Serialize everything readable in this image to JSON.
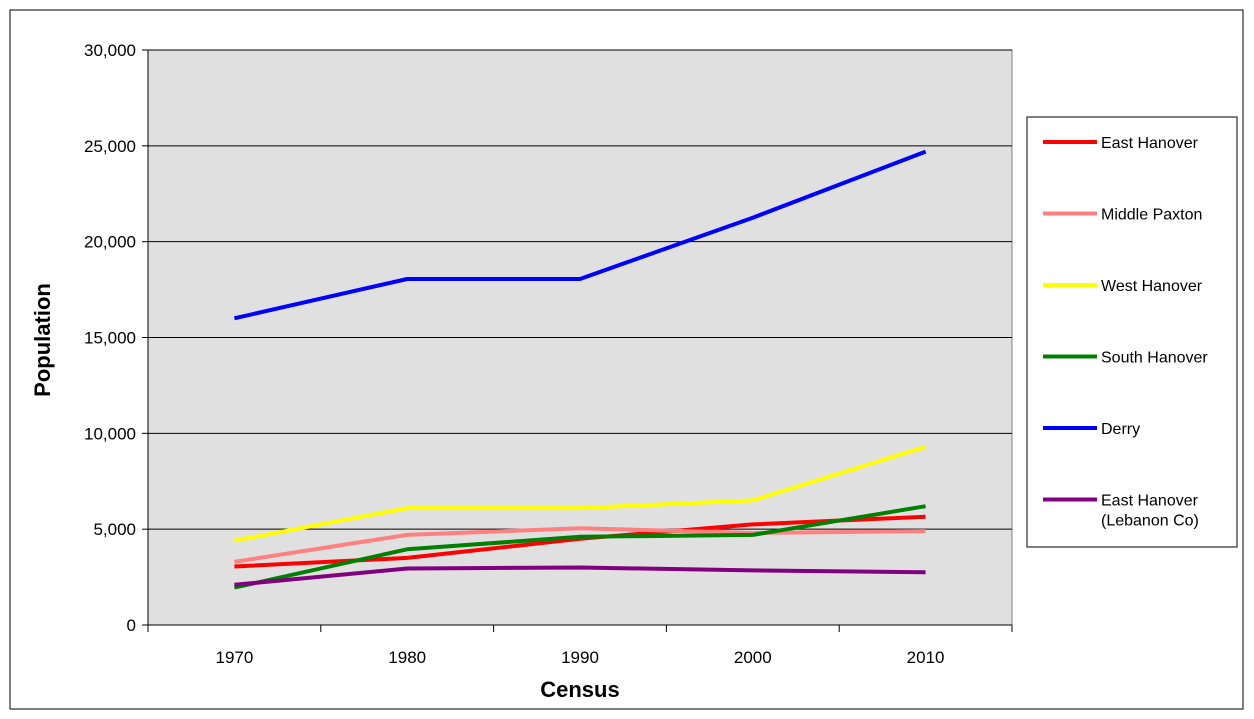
{
  "chart_data": {
    "type": "line",
    "title": "",
    "xlabel": "Census",
    "ylabel": "Population",
    "categories": [
      "1970",
      "1980",
      "1990",
      "2000",
      "2010"
    ],
    "ylim": [
      0,
      30000
    ],
    "yticks": [
      0,
      5000,
      10000,
      15000,
      20000,
      25000,
      30000
    ],
    "ytick_labels": [
      "0",
      "5,000",
      "10,000",
      "15,000",
      "20,000",
      "25,000",
      "30,000"
    ],
    "grid": true,
    "legend_position": "right",
    "plot_background": "#e0e0e0",
    "series": [
      {
        "name": "East Hanover",
        "color": "#ff0000",
        "values": [
          3050,
          3500,
          4500,
          5250,
          5650
        ]
      },
      {
        "name": "Middle Paxton",
        "color": "#ff8080",
        "values": [
          3300,
          4700,
          5050,
          4800,
          4900
        ]
      },
      {
        "name": "West Hanover",
        "color": "#ffff00",
        "values": [
          4400,
          6100,
          6100,
          6500,
          9300
        ]
      },
      {
        "name": "South Hanover",
        "color": "#008000",
        "values": [
          1950,
          3950,
          4600,
          4700,
          6200
        ]
      },
      {
        "name": "Derry",
        "color": "#0000ff",
        "values": [
          16000,
          18050,
          18050,
          21250,
          24700
        ]
      },
      {
        "name": "East Hanover (Lebanon Co)",
        "name_lines": [
          "East Hanover",
          "(Lebanon Co)"
        ],
        "color": "#800080",
        "values": [
          2100,
          2950,
          3000,
          2850,
          2750
        ]
      }
    ]
  }
}
